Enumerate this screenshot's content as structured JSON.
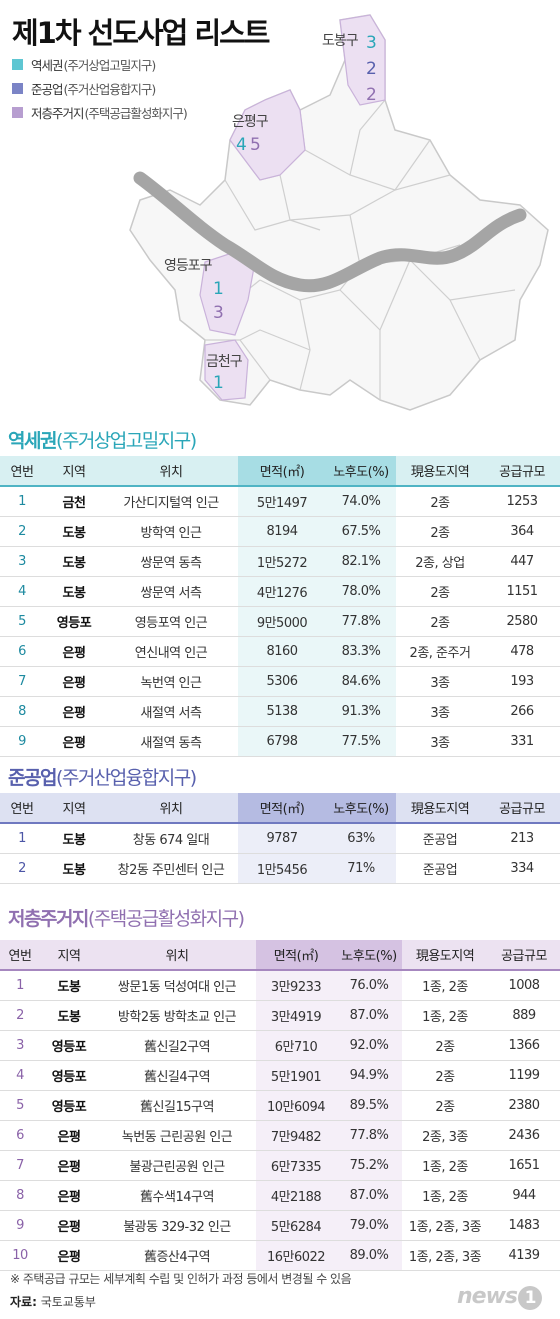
{
  "title": "제1차 선도사업 리스트",
  "legend": [
    {
      "name": "역세권",
      "sub": "(주거상업고밀지구)",
      "color": "#5ec6d2"
    },
    {
      "name": "준공업",
      "sub": "(주거산업융합지구)",
      "color": "#7b84c6"
    },
    {
      "name": "저층주거지",
      "sub": "(주택공급활성화지구)",
      "color": "#b79ed0"
    }
  ],
  "colors": {
    "station": "#2aa6b8",
    "industrial": "#5860ad",
    "lowrise": "#9070b0"
  },
  "map": {
    "districts": [
      {
        "name": "도봉구",
        "counts": [
          "3",
          "2",
          "2"
        ]
      },
      {
        "name": "은평구",
        "counts": [
          "4",
          "5"
        ]
      },
      {
        "name": "영등포구",
        "counts": [
          "1",
          "3"
        ]
      },
      {
        "name": "금천구",
        "counts": [
          "1"
        ]
      }
    ]
  },
  "columns": [
    "연번",
    "지역",
    "위치",
    "면적(㎡)",
    "노후도(%)",
    "現용도지역",
    "공급규모"
  ],
  "station": {
    "title": "역세권",
    "paren": "(주거상업고밀지구)",
    "rows": [
      [
        "1",
        "금천",
        "가산디지털역 인근",
        "5만1497",
        "74.0%",
        "2종",
        "1253"
      ],
      [
        "2",
        "도봉",
        "방학역 인근",
        "8194",
        "67.5%",
        "2종",
        "364"
      ],
      [
        "3",
        "도봉",
        "쌍문역 동측",
        "1만5272",
        "82.1%",
        "2종, 상업",
        "447"
      ],
      [
        "4",
        "도봉",
        "쌍문역 서측",
        "4만1276",
        "78.0%",
        "2종",
        "1151"
      ],
      [
        "5",
        "영등포",
        "영등포역 인근",
        "9만5000",
        "77.8%",
        "2종",
        "2580"
      ],
      [
        "6",
        "은평",
        "연신내역 인근",
        "8160",
        "83.3%",
        "2종, 준주거",
        "478"
      ],
      [
        "7",
        "은평",
        "녹번역 인근",
        "5306",
        "84.6%",
        "3종",
        "193"
      ],
      [
        "8",
        "은평",
        "새절역 서측",
        "5138",
        "91.3%",
        "3종",
        "266"
      ],
      [
        "9",
        "은평",
        "새절역 동측",
        "6798",
        "77.5%",
        "3종",
        "331"
      ]
    ]
  },
  "industrial": {
    "title": "준공업",
    "paren": "(주거산업융합지구)",
    "rows": [
      [
        "1",
        "도봉",
        "창동 674 일대",
        "9787",
        "63%",
        "준공업",
        "213"
      ],
      [
        "2",
        "도봉",
        "창2동 주민센터 인근",
        "1만5456",
        "71%",
        "준공업",
        "334"
      ]
    ]
  },
  "lowrise": {
    "title": "저층주거지",
    "paren": "(주택공급활성화지구)",
    "rows": [
      [
        "1",
        "도봉",
        "쌍문1동 덕성여대 인근",
        "3만9233",
        "76.0%",
        "1종, 2종",
        "1008"
      ],
      [
        "2",
        "도봉",
        "방학2동 방학초교 인근",
        "3만4919",
        "87.0%",
        "1종, 2종",
        "889"
      ],
      [
        "3",
        "영등포",
        "舊신길2구역",
        "6만710",
        "92.0%",
        "2종",
        "1366"
      ],
      [
        "4",
        "영등포",
        "舊신길4구역",
        "5만1901",
        "94.9%",
        "2종",
        "1199"
      ],
      [
        "5",
        "영등포",
        "舊신길15구역",
        "10만6094",
        "89.5%",
        "2종",
        "2380"
      ],
      [
        "6",
        "은평",
        "녹번동 근린공원 인근",
        "7만9482",
        "77.8%",
        "2종, 3종",
        "2436"
      ],
      [
        "7",
        "은평",
        "불광근린공원 인근",
        "6만7335",
        "75.2%",
        "1종, 2종",
        "1651"
      ],
      [
        "8",
        "은평",
        "舊수색14구역",
        "4만2188",
        "87.0%",
        "1종, 2종",
        "944"
      ],
      [
        "9",
        "은평",
        "불광동 329-32 인근",
        "5만6284",
        "79.0%",
        "1종, 2종, 3종",
        "1483"
      ],
      [
        "10",
        "은평",
        "舊증산4구역",
        "16만6022",
        "89.0%",
        "1종, 2종, 3종",
        "4139"
      ]
    ]
  },
  "footnote": "※ 주택공급 규모는 세부계획 수립 및 인허가 과정 등에서 변경될 수 있음",
  "source_label": "자료:",
  "source": "국토교통부",
  "logo": {
    "text": "news",
    "mark": "1"
  }
}
